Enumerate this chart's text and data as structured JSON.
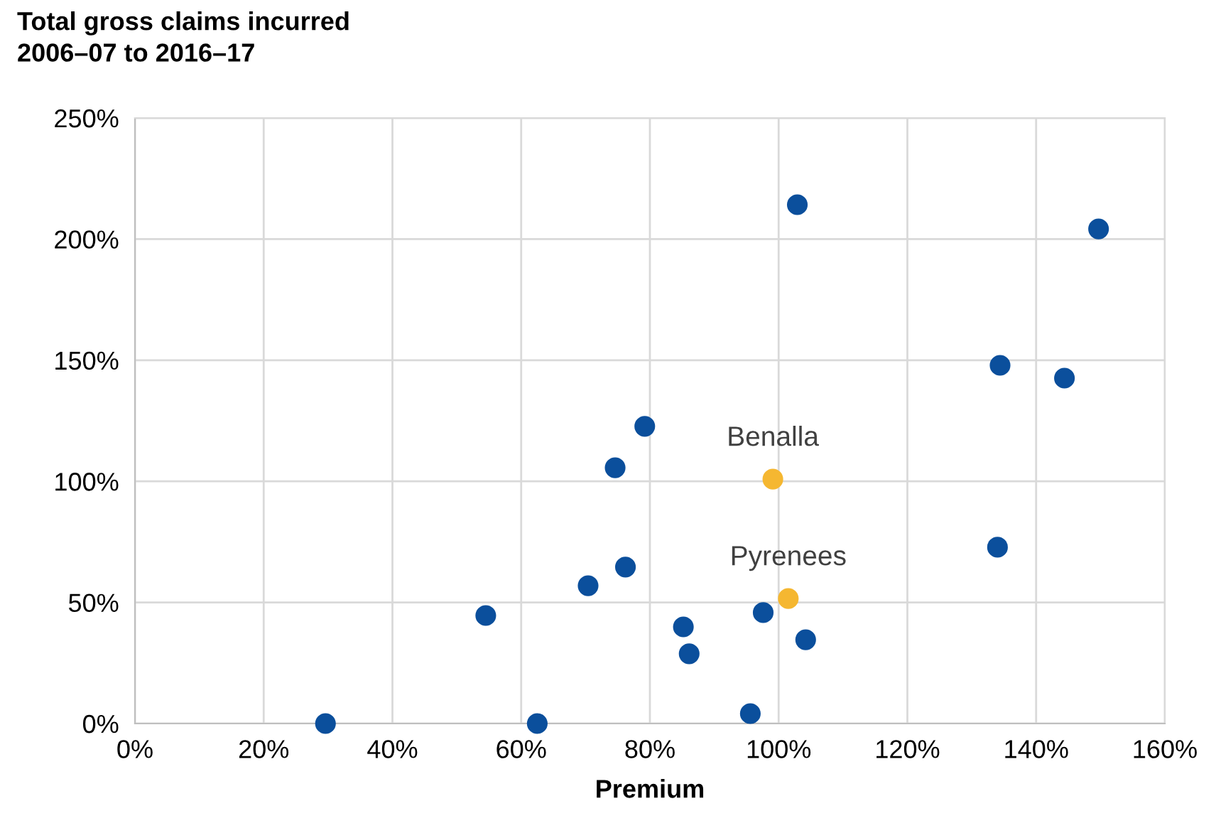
{
  "chart_data": {
    "type": "scatter",
    "title": "Total gross claims incurred\n2006–07 to 2016–17",
    "xlabel": "Premium",
    "series": [
      {
        "color": "#0b4f9c",
        "x": [
          29.6,
          62.5,
          54.5,
          70.4,
          76.2,
          74.6,
          79.2,
          85.2,
          86.1,
          95.6,
          97.6,
          104.2,
          102.9,
          134.0,
          134.4,
          144.4,
          149.7
        ],
        "values": [
          0,
          0,
          44.6,
          56.9,
          64.6,
          105.6,
          122.7,
          39.9,
          28.8,
          4.1,
          45.8,
          34.6,
          214.2,
          72.8,
          147.9,
          142.6,
          204.2
        ]
      },
      {
        "color": "#f5b731",
        "x": [
          99.1,
          101.5
        ],
        "values": [
          100.9,
          51.6
        ]
      }
    ],
    "annotations": [
      {
        "text": "Benalla",
        "x": 99.1,
        "y": 100.9
      },
      {
        "text": "Pyrenees",
        "x": 101.5,
        "y": 51.6
      }
    ],
    "xlim": [
      0,
      160
    ],
    "ylim": [
      0,
      250
    ],
    "xticks": [
      {
        "value": 0,
        "label": "0%"
      },
      {
        "value": 20,
        "label": "20%"
      },
      {
        "value": 40,
        "label": "40%"
      },
      {
        "value": 60,
        "label": "60%"
      },
      {
        "value": 80,
        "label": "80%"
      },
      {
        "value": 100,
        "label": "100%"
      },
      {
        "value": 120,
        "label": "120%"
      },
      {
        "value": 140,
        "label": "140%"
      },
      {
        "value": 160,
        "label": "160%"
      }
    ],
    "yticks": [
      {
        "value": 0,
        "label": "0%"
      },
      {
        "value": 50,
        "label": "50%"
      },
      {
        "value": 100,
        "label": "100%"
      },
      {
        "value": 150,
        "label": "150%"
      },
      {
        "value": 200,
        "label": "200%"
      },
      {
        "value": 250,
        "label": "250%"
      }
    ],
    "grid": true,
    "marker": "circle"
  }
}
